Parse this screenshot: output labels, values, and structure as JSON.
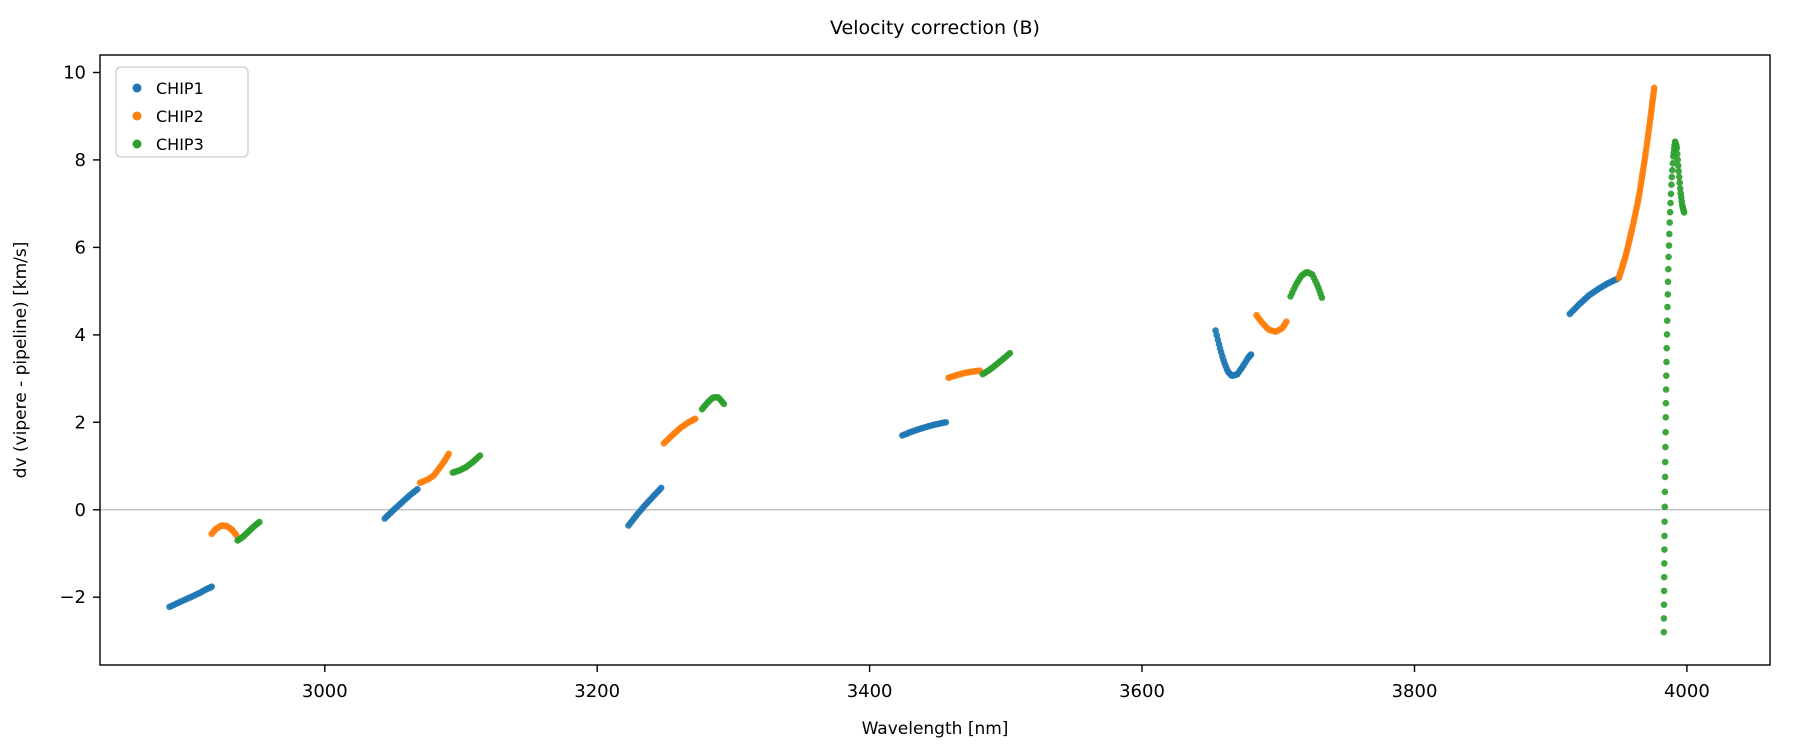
{
  "chart_data": {
    "type": "scatter",
    "title": "Velocity correction (B)",
    "xlabel": "Wavelength [nm]",
    "ylabel": "dv (vipere - pipeline) [km/s]",
    "xlim": [
      2835,
      4061
    ],
    "ylim": [
      -3.55,
      10.4
    ],
    "xticks": [
      3000,
      3200,
      3400,
      3600,
      3800,
      4000
    ],
    "yticks": [
      -2,
      0,
      2,
      4,
      6,
      8,
      10
    ],
    "hline": 0,
    "hline_color": "#b0b0b0",
    "legend": [
      "CHIP1",
      "CHIP2",
      "CHIP3"
    ],
    "legend_position": "upper left",
    "grid": false,
    "series": [
      {
        "name": "CHIP1",
        "color": "#1f77b4",
        "segments": [
          {
            "n": 22,
            "points": [
              [
                2886,
                -2.22
              ],
              [
                2893,
                -2.12
              ],
              [
                2900,
                -2.02
              ],
              [
                2907,
                -1.92
              ],
              [
                2913,
                -1.82
              ],
              [
                2917,
                -1.76
              ]
            ]
          },
          {
            "n": 18,
            "points": [
              [
                3044,
                -0.2
              ],
              [
                3050,
                -0.02
              ],
              [
                3056,
                0.15
              ],
              [
                3062,
                0.32
              ],
              [
                3068,
                0.47
              ]
            ]
          },
          {
            "n": 18,
            "points": [
              [
                3223,
                -0.36
              ],
              [
                3229,
                -0.12
              ],
              [
                3235,
                0.1
              ],
              [
                3241,
                0.3
              ],
              [
                3247,
                0.5
              ]
            ]
          },
          {
            "n": 22,
            "points": [
              [
                3424,
                1.7
              ],
              [
                3432,
                1.8
              ],
              [
                3440,
                1.88
              ],
              [
                3448,
                1.95
              ],
              [
                3456,
                2.0
              ]
            ]
          },
          {
            "n": 30,
            "points": [
              [
                3654,
                4.1
              ],
              [
                3657,
                3.72
              ],
              [
                3660,
                3.4
              ],
              [
                3663,
                3.16
              ],
              [
                3666,
                3.06
              ],
              [
                3670,
                3.1
              ],
              [
                3674,
                3.28
              ],
              [
                3678,
                3.48
              ],
              [
                3680,
                3.55
              ]
            ]
          },
          {
            "n": 26,
            "points": [
              [
                3914,
                4.48
              ],
              [
                3921,
                4.7
              ],
              [
                3928,
                4.9
              ],
              [
                3935,
                5.05
              ],
              [
                3942,
                5.18
              ],
              [
                3949,
                5.28
              ]
            ]
          }
        ]
      },
      {
        "name": "CHIP2",
        "color": "#ff7f0e",
        "segments": [
          {
            "n": 18,
            "points": [
              [
                2917,
                -0.55
              ],
              [
                2920,
                -0.44
              ],
              [
                2924,
                -0.36
              ],
              [
                2928,
                -0.37
              ],
              [
                2932,
                -0.46
              ],
              [
                2935,
                -0.58
              ]
            ]
          },
          {
            "n": 18,
            "points": [
              [
                3070,
                0.62
              ],
              [
                3075,
                0.68
              ],
              [
                3080,
                0.78
              ],
              [
                3084,
                0.95
              ],
              [
                3088,
                1.12
              ],
              [
                3091,
                1.28
              ]
            ]
          },
          {
            "n": 18,
            "points": [
              [
                3249,
                1.52
              ],
              [
                3255,
                1.7
              ],
              [
                3261,
                1.87
              ],
              [
                3267,
                2.0
              ],
              [
                3272,
                2.08
              ]
            ]
          },
          {
            "n": 18,
            "points": [
              [
                3458,
                3.02
              ],
              [
                3464,
                3.08
              ],
              [
                3470,
                3.13
              ],
              [
                3476,
                3.16
              ],
              [
                3481,
                3.18
              ]
            ]
          },
          {
            "n": 18,
            "points": [
              [
                3684,
                4.45
              ],
              [
                3688,
                4.28
              ],
              [
                3693,
                4.12
              ],
              [
                3698,
                4.07
              ],
              [
                3703,
                4.15
              ],
              [
                3706,
                4.3
              ]
            ]
          },
          {
            "n": 70,
            "points": [
              [
                3950,
                5.3
              ],
              [
                3955,
                5.8
              ],
              [
                3960,
                6.45
              ],
              [
                3965,
                7.2
              ],
              [
                3969,
                8.0
              ],
              [
                3973,
                8.9
              ],
              [
                3976,
                9.65
              ]
            ]
          }
        ]
      },
      {
        "name": "CHIP3",
        "color": "#2ca02c",
        "segments": [
          {
            "n": 16,
            "points": [
              [
                2936,
                -0.7
              ],
              [
                2940,
                -0.62
              ],
              [
                2944,
                -0.5
              ],
              [
                2948,
                -0.38
              ],
              [
                2952,
                -0.28
              ]
            ]
          },
          {
            "n": 16,
            "points": [
              [
                3094,
                0.85
              ],
              [
                3099,
                0.9
              ],
              [
                3104,
                0.98
              ],
              [
                3109,
                1.1
              ],
              [
                3114,
                1.24
              ]
            ]
          },
          {
            "n": 16,
            "points": [
              [
                3277,
                2.3
              ],
              [
                3281,
                2.45
              ],
              [
                3285,
                2.57
              ],
              [
                3289,
                2.57
              ],
              [
                3293,
                2.42
              ]
            ]
          },
          {
            "n": 16,
            "points": [
              [
                3483,
                3.1
              ],
              [
                3488,
                3.2
              ],
              [
                3493,
                3.32
              ],
              [
                3498,
                3.45
              ],
              [
                3503,
                3.58
              ]
            ]
          },
          {
            "n": 22,
            "points": [
              [
                3709,
                4.88
              ],
              [
                3713,
                5.15
              ],
              [
                3717,
                5.35
              ],
              [
                3721,
                5.44
              ],
              [
                3725,
                5.38
              ],
              [
                3729,
                5.12
              ],
              [
                3732,
                4.85
              ]
            ]
          },
          {
            "n": 62,
            "points": [
              [
                3983,
                -2.8
              ],
              [
                3983.3,
                -1.6
              ],
              [
                3983.6,
                -0.4
              ],
              [
                3984,
                0.9
              ],
              [
                3984.5,
                2.2
              ],
              [
                3985,
                3.4
              ],
              [
                3985.7,
                4.6
              ],
              [
                3986.5,
                5.7
              ],
              [
                3987.5,
                6.7
              ],
              [
                3988.7,
                7.5
              ],
              [
                3990,
                8.1
              ],
              [
                3991.3,
                8.42
              ],
              [
                3992.5,
                8.3
              ],
              [
                3993.8,
                7.8
              ],
              [
                3995.2,
                7.3
              ],
              [
                3996.6,
                6.95
              ],
              [
                3998,
                6.8
              ]
            ]
          }
        ]
      }
    ]
  }
}
